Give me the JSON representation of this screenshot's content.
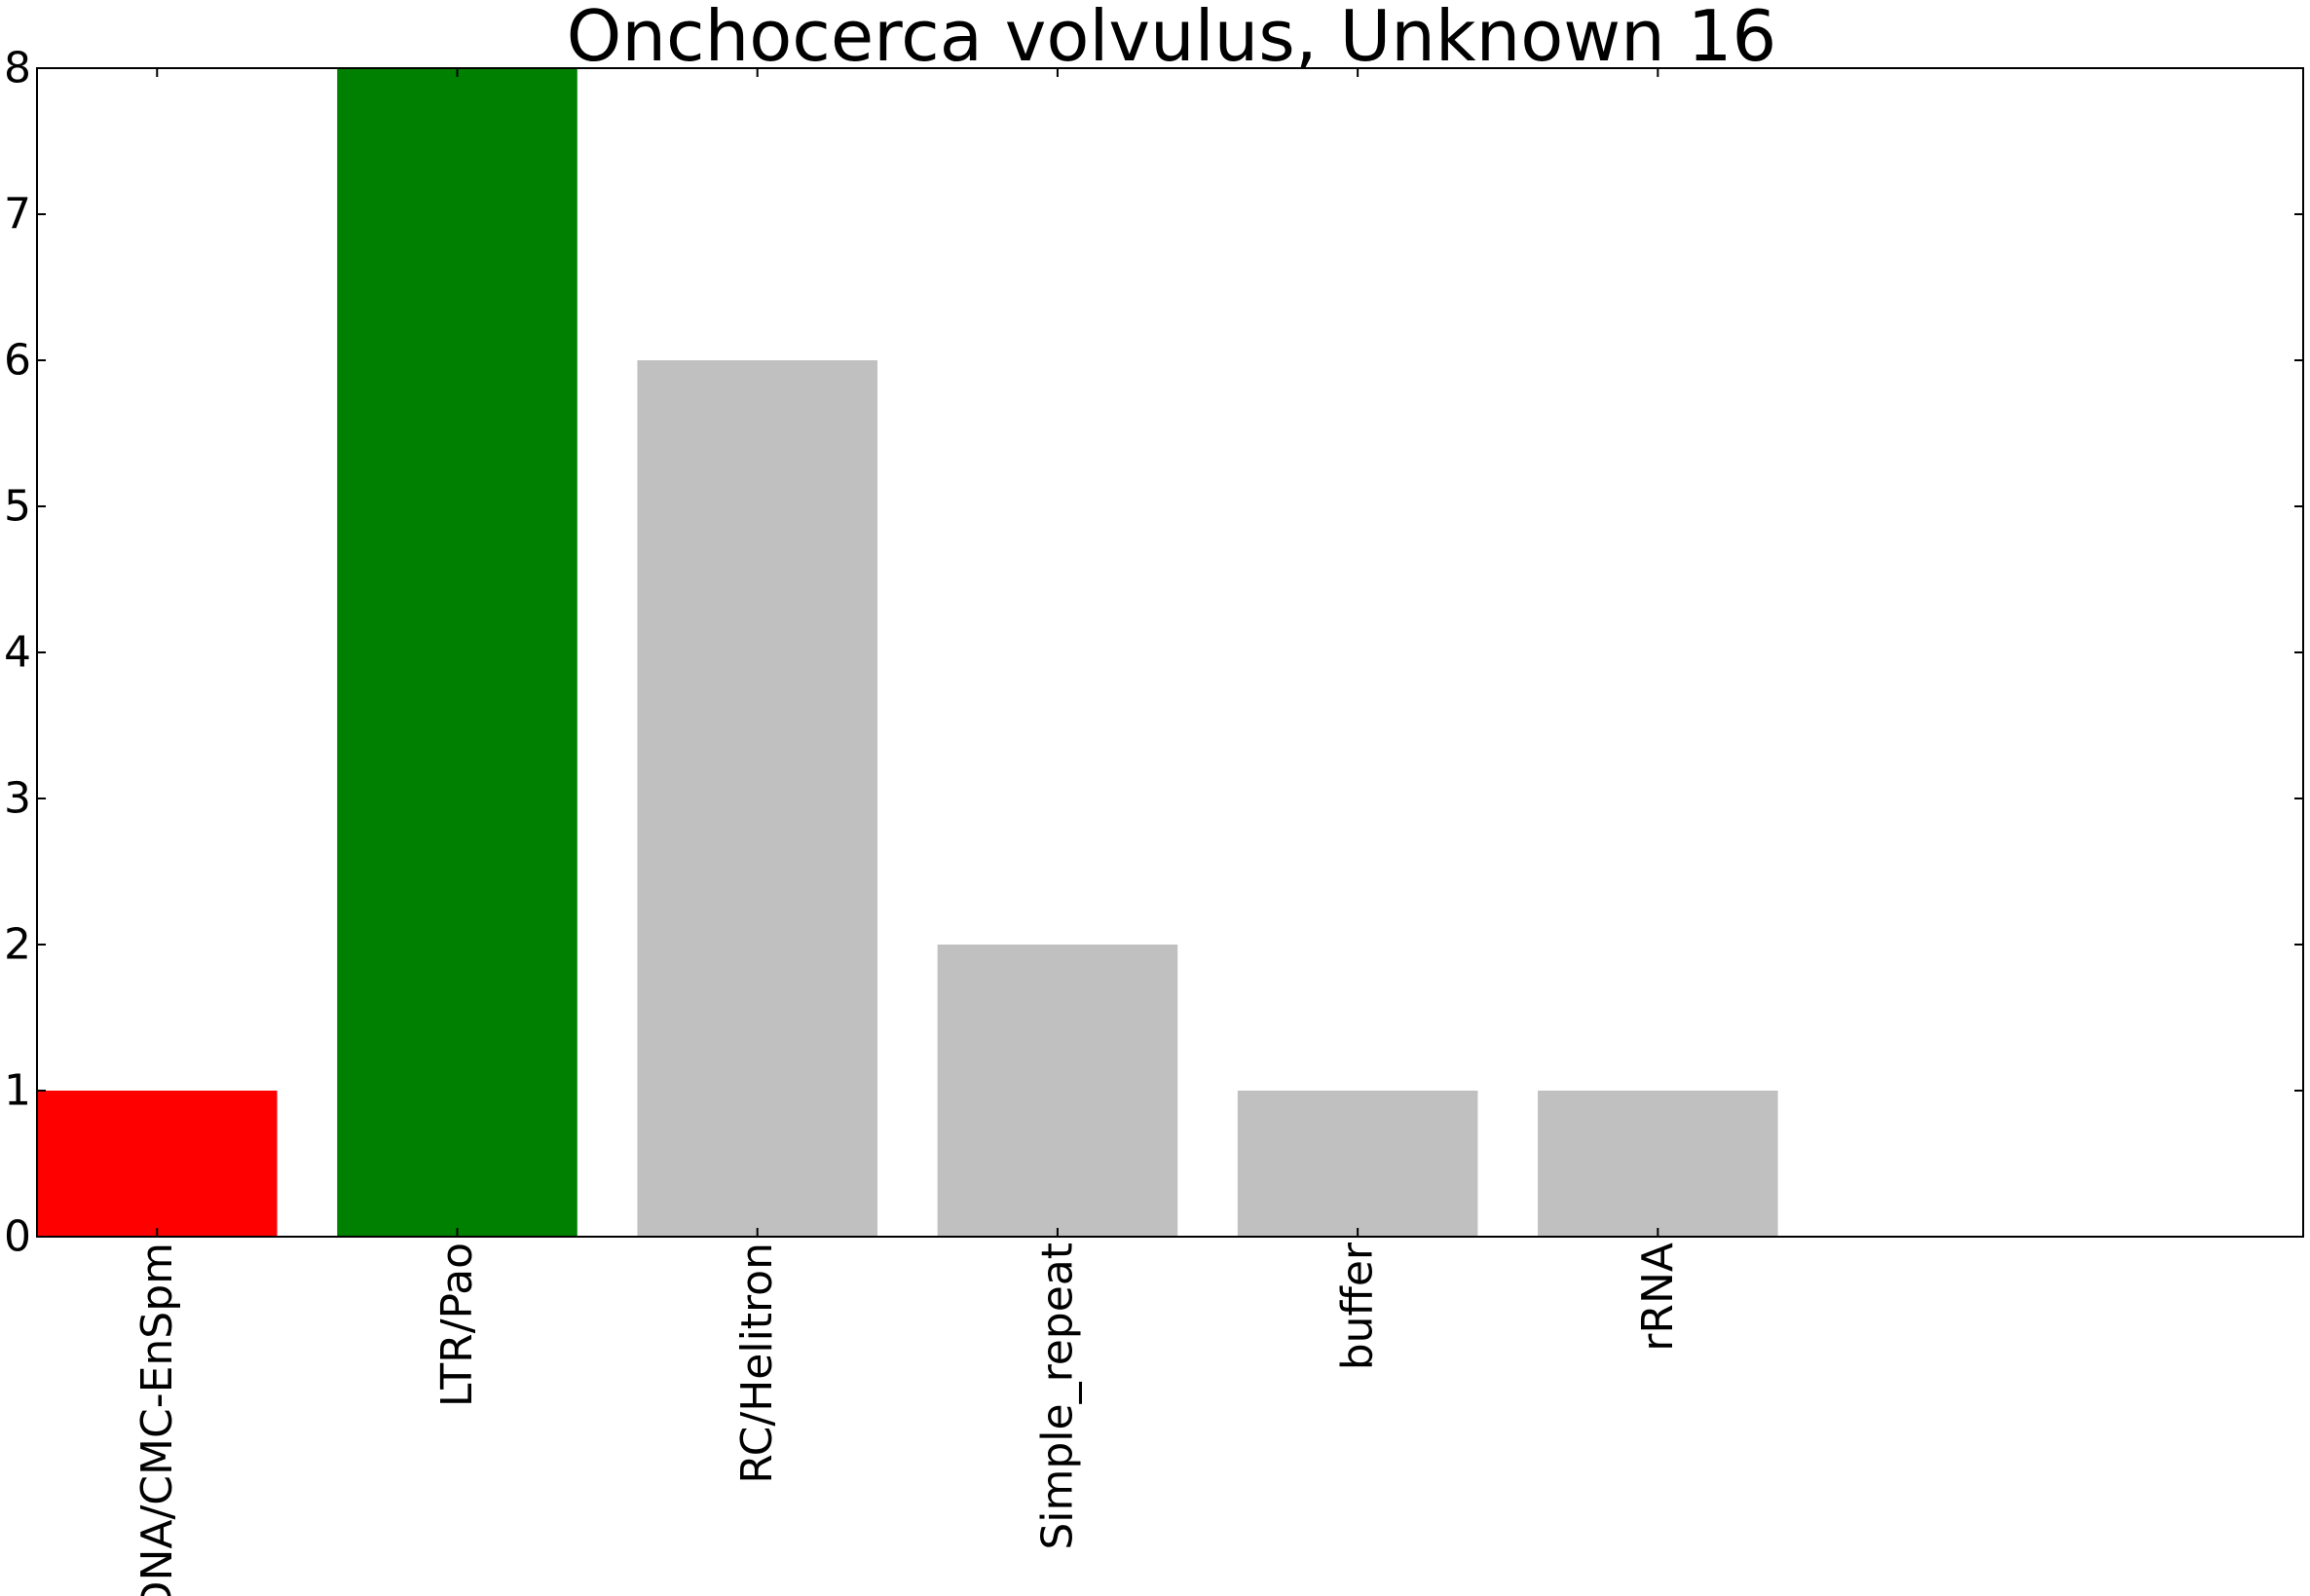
{
  "chart_data": {
    "type": "bar",
    "title": "Onchocerca volvulus, Unknown 16",
    "xlabel": "",
    "ylabel": "",
    "categories": [
      "DNA/CMC-EnSpm",
      "LTR/Pao",
      "RC/Helitron",
      "Simple_repeat",
      "buffer",
      "rRNA"
    ],
    "values": [
      1,
      8,
      6,
      2,
      1,
      1
    ],
    "colors": [
      "#ff0000",
      "#008000",
      "#c0c0c0",
      "#c0c0c0",
      "#c0c0c0",
      "#c0c0c0"
    ],
    "ylim": [
      0,
      8
    ],
    "xlim": [
      0,
      7.55
    ],
    "bar_width": 0.8,
    "yticks": [
      0,
      1,
      2,
      3,
      4,
      5,
      6,
      7,
      8
    ],
    "grid": false,
    "legend": null
  }
}
